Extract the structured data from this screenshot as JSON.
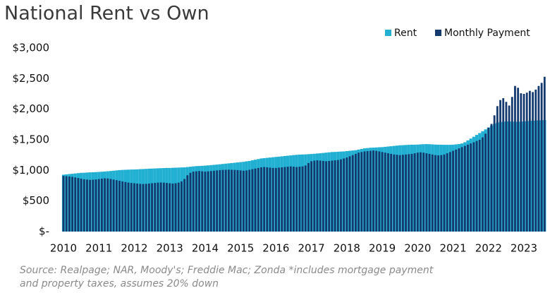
{
  "chart_data": {
    "type": "bar",
    "title": "National Rent vs Own",
    "categories": [
      "2010",
      null,
      null,
      null,
      null,
      null,
      null,
      null,
      null,
      null,
      null,
      null,
      "2011",
      null,
      null,
      null,
      null,
      null,
      null,
      null,
      null,
      null,
      null,
      null,
      "2012",
      null,
      null,
      null,
      null,
      null,
      null,
      null,
      null,
      null,
      null,
      null,
      "2013",
      null,
      null,
      null,
      null,
      null,
      null,
      null,
      null,
      null,
      null,
      null,
      "2014",
      null,
      null,
      null,
      null,
      null,
      null,
      null,
      null,
      null,
      null,
      null,
      "2015",
      null,
      null,
      null,
      null,
      null,
      null,
      null,
      null,
      null,
      null,
      null,
      "2016",
      null,
      null,
      null,
      null,
      null,
      null,
      null,
      null,
      null,
      null,
      null,
      "2017",
      null,
      null,
      null,
      null,
      null,
      null,
      null,
      null,
      null,
      null,
      null,
      "2018",
      null,
      null,
      null,
      null,
      null,
      null,
      null,
      null,
      null,
      null,
      null,
      "2019",
      null,
      null,
      null,
      null,
      null,
      null,
      null,
      null,
      null,
      null,
      null,
      "2020",
      null,
      null,
      null,
      null,
      null,
      null,
      null,
      null,
      null,
      null,
      null,
      "2021",
      null,
      null,
      null,
      null,
      null,
      null,
      null,
      null,
      null,
      null,
      null,
      "2022",
      null,
      null,
      null,
      null,
      null,
      null,
      null,
      null,
      null,
      null,
      null,
      "2023",
      null,
      null,
      null,
      null,
      null,
      null,
      null
    ],
    "series": [
      {
        "name": "Rent",
        "color": "#22b0d2",
        "values": [
          930,
          935,
          940,
          945,
          950,
          955,
          960,
          962,
          965,
          968,
          970,
          972,
          975,
          978,
          982,
          986,
          990,
          995,
          1000,
          1005,
          1008,
          1010,
          1012,
          1014,
          1015,
          1017,
          1020,
          1022,
          1025,
          1028,
          1030,
          1032,
          1034,
          1036,
          1038,
          1040,
          1040,
          1042,
          1044,
          1046,
          1048,
          1050,
          1055,
          1060,
          1065,
          1070,
          1072,
          1075,
          1078,
          1082,
          1086,
          1090,
          1095,
          1100,
          1105,
          1110,
          1115,
          1120,
          1125,
          1130,
          1135,
          1140,
          1148,
          1155,
          1165,
          1175,
          1185,
          1195,
          1200,
          1205,
          1210,
          1215,
          1220,
          1225,
          1230,
          1235,
          1240,
          1245,
          1250,
          1255,
          1258,
          1260,
          1262,
          1265,
          1268,
          1272,
          1276,
          1280,
          1285,
          1290,
          1295,
          1300,
          1302,
          1305,
          1308,
          1310,
          1315,
          1320,
          1325,
          1330,
          1340,
          1350,
          1360,
          1365,
          1370,
          1372,
          1375,
          1378,
          1380,
          1385,
          1390,
          1395,
          1400,
          1405,
          1410,
          1412,
          1415,
          1418,
          1420,
          1420,
          1422,
          1425,
          1428,
          1430,
          1428,
          1425,
          1422,
          1420,
          1420,
          1418,
          1418,
          1418,
          1420,
          1425,
          1430,
          1440,
          1460,
          1490,
          1520,
          1550,
          1580,
          1610,
          1640,
          1670,
          1700,
          1730,
          1760,
          1780,
          1790,
          1795,
          1800,
          1800,
          1798,
          1795,
          1795,
          1796,
          1800,
          1805,
          1810,
          1812,
          1815,
          1818,
          1820,
          1822
        ]
      },
      {
        "name": "Monthly Payment",
        "color": "#14396e",
        "values": [
          910,
          905,
          900,
          895,
          885,
          875,
          865,
          855,
          850,
          845,
          848,
          852,
          858,
          865,
          870,
          868,
          860,
          850,
          840,
          830,
          820,
          810,
          800,
          795,
          790,
          785,
          780,
          778,
          780,
          785,
          790,
          795,
          800,
          802,
          800,
          795,
          790,
          785,
          790,
          800,
          820,
          860,
          920,
          960,
          980,
          985,
          990,
          985,
          980,
          985,
          990,
          995,
          1000,
          1005,
          1008,
          1010,
          1012,
          1010,
          1008,
          1005,
          1000,
          995,
          1000,
          1010,
          1020,
          1030,
          1040,
          1050,
          1055,
          1050,
          1045,
          1040,
          1040,
          1045,
          1050,
          1055,
          1060,
          1065,
          1060,
          1055,
          1060,
          1065,
          1080,
          1120,
          1150,
          1160,
          1165,
          1160,
          1155,
          1150,
          1155,
          1160,
          1165,
          1170,
          1180,
          1195,
          1210,
          1230,
          1250,
          1270,
          1290,
          1300,
          1310,
          1315,
          1320,
          1325,
          1320,
          1310,
          1300,
          1290,
          1280,
          1270,
          1260,
          1255,
          1250,
          1255,
          1260,
          1265,
          1270,
          1280,
          1290,
          1295,
          1290,
          1280,
          1270,
          1260,
          1250,
          1245,
          1250,
          1260,
          1280,
          1300,
          1320,
          1340,
          1360,
          1380,
          1400,
          1420,
          1440,
          1460,
          1480,
          1500,
          1540,
          1600,
          1700,
          1760,
          1900,
          2050,
          2150,
          2180,
          2120,
          2060,
          2200,
          2380,
          2350,
          2260,
          2250,
          2270,
          2300,
          2280,
          2320,
          2380,
          2430,
          2530
        ]
      }
    ],
    "ylim": [
      0,
      3000
    ],
    "yticks": [
      {
        "value": 0,
        "label": "$-"
      },
      {
        "value": 500,
        "label": "$500"
      },
      {
        "value": 1000,
        "label": "$1,000"
      },
      {
        "value": 1500,
        "label": "$1,500"
      },
      {
        "value": 2000,
        "label": "$2,000"
      },
      {
        "value": 2500,
        "label": "$2,500"
      },
      {
        "value": 3000,
        "label": "$3,000"
      }
    ],
    "grid": false,
    "legend": "top-right",
    "source": [
      "Source: Realpage; NAR, Moody's; Freddie Mac; Zonda *includes mortgage payment",
      "and property taxes, assumes 20% down"
    ]
  }
}
